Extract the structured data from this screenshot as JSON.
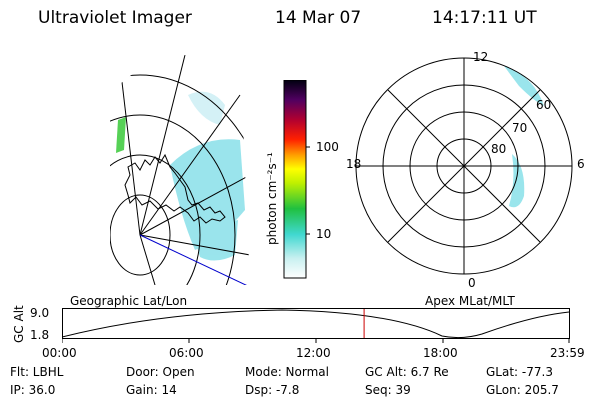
{
  "header": {
    "instrument": "Ultraviolet Imager",
    "date": "14 Mar 07",
    "time": "14:17:11 UT"
  },
  "colorbar": {
    "unit_label": "photon cm⁻²s⁻¹",
    "ticks": [
      "100",
      "10"
    ]
  },
  "polar_plot": {
    "labels": {
      "top": "12",
      "left": "18",
      "right": "6",
      "bottom": "0"
    },
    "lat_labels": [
      "60",
      "70",
      "80"
    ]
  },
  "timeline": {
    "left_title": "Geographic Lat/Lon",
    "right_title": "Apex MLat/MLT",
    "y_label": "GC Alt",
    "y_max": "9.0",
    "y_min": "1.8",
    "x_ticks": [
      "00:00",
      "06:00",
      "12:00",
      "18:00",
      "23:59"
    ],
    "marker_hour": 14.29
  },
  "info": {
    "filter": "Flt: LBHL",
    "ip": "IP: 36.0",
    "door": "Door: Open",
    "gain": "Gain: 14",
    "mode": "Mode: Normal",
    "dsp": "Dsp:   -7.8",
    "gc_alt": "GC Alt: 6.7 Re",
    "seq": "Seq: 39",
    "glat": "GLat: -77.3",
    "glon": "GLon: 205.7"
  },
  "colors": {
    "accent_line": "#cc0000",
    "track_line": "#0000cc",
    "aurora": "#7fe0e8"
  }
}
